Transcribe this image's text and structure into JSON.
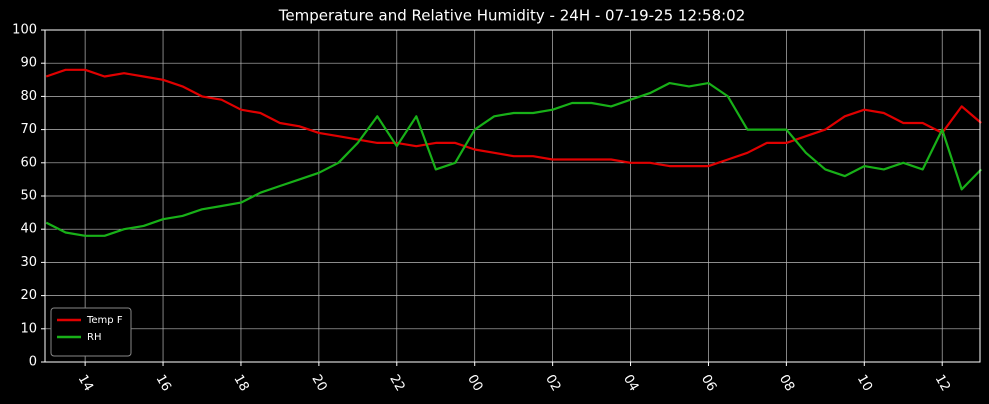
{
  "chart_data": {
    "type": "line",
    "title": "Temperature and Relative Humidity - 24H - 07-19-25 12:58:02",
    "x": [
      13,
      13.5,
      14,
      14.5,
      15,
      15.5,
      16,
      16.5,
      17,
      17.5,
      18,
      18.5,
      19,
      19.5,
      20,
      20.5,
      21,
      21.5,
      22,
      22.5,
      23,
      23.5,
      24,
      24.5,
      25,
      25.5,
      26,
      26.5,
      27,
      27.5,
      28,
      28.5,
      29,
      29.5,
      30,
      30.5,
      31,
      31.5,
      32,
      32.5,
      33,
      33.5,
      34,
      34.5,
      35,
      35.5,
      36,
      36.5,
      37
    ],
    "series": [
      {
        "name": "Temp F",
        "color": "#e00000",
        "values": [
          86,
          88,
          88,
          86,
          87,
          86,
          85,
          83,
          80,
          79,
          76,
          75,
          72,
          71,
          69,
          68,
          67,
          66,
          66,
          65,
          66,
          66,
          64,
          63,
          62,
          62,
          61,
          61,
          61,
          61,
          60,
          60,
          59,
          59,
          59,
          61,
          63,
          66,
          66,
          68,
          70,
          74,
          76,
          75,
          72,
          72,
          69,
          77,
          72
        ]
      },
      {
        "name": "RH",
        "color": "#18b018",
        "values": [
          42,
          39,
          38,
          38,
          40,
          41,
          43,
          44,
          46,
          47,
          48,
          51,
          53,
          55,
          57,
          60,
          66,
          74,
          65,
          74,
          58,
          60,
          70,
          74,
          75,
          75,
          76,
          78,
          78,
          77,
          79,
          81,
          84,
          83,
          84,
          80,
          70,
          70,
          70,
          63,
          58,
          56,
          59,
          58,
          60,
          58,
          70,
          52,
          58
        ]
      }
    ],
    "xlim": [
      12.97,
      36.97
    ],
    "xticks": [
      {
        "value": 14,
        "label": "14"
      },
      {
        "value": 16,
        "label": "16"
      },
      {
        "value": 18,
        "label": "18"
      },
      {
        "value": 20,
        "label": "20"
      },
      {
        "value": 22,
        "label": "22"
      },
      {
        "value": 24,
        "label": "00"
      },
      {
        "value": 26,
        "label": "02"
      },
      {
        "value": 28,
        "label": "04"
      },
      {
        "value": 30,
        "label": "06"
      },
      {
        "value": 32,
        "label": "08"
      },
      {
        "value": 34,
        "label": "10"
      },
      {
        "value": 36,
        "label": "12"
      }
    ],
    "ylim": [
      0,
      100
    ],
    "yticks": [
      0,
      10,
      20,
      30,
      40,
      50,
      60,
      70,
      80,
      90,
      100
    ],
    "grid": true,
    "legend": "lower left"
  }
}
